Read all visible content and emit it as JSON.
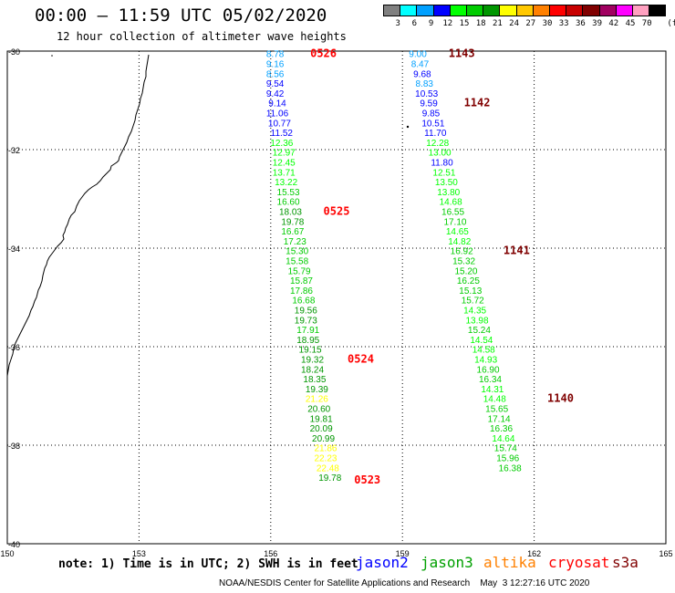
{
  "header": {
    "title": "00:00 — 11:59 UTC 05/02/2020",
    "subtitle": "12 hour collection of altimeter wave heights"
  },
  "legend": {
    "unit_label": "(ft)",
    "bins": [
      {
        "label": "3",
        "color": "#808080"
      },
      {
        "label": "6",
        "color": "#00ffff"
      },
      {
        "label": "9",
        "color": "#00a0ff"
      },
      {
        "label": "12",
        "color": "#0000ff"
      },
      {
        "label": "15",
        "color": "#00ff00"
      },
      {
        "label": "18",
        "color": "#00cc00"
      },
      {
        "label": "21",
        "color": "#009600"
      },
      {
        "label": "24",
        "color": "#ffff00"
      },
      {
        "label": "27",
        "color": "#ffc800"
      },
      {
        "label": "30",
        "color": "#ff8000"
      },
      {
        "label": "33",
        "color": "#ff0000"
      },
      {
        "label": "36",
        "color": "#c80000"
      },
      {
        "label": "39",
        "color": "#800000"
      },
      {
        "label": "42",
        "color": "#a00060"
      },
      {
        "label": "45",
        "color": "#ff00ff"
      },
      {
        "label": "70",
        "color": "#ffa0c0"
      },
      {
        "label": "",
        "color": "#000000"
      }
    ]
  },
  "map": {
    "lon_range": [
      150,
      165
    ],
    "lat_range": [
      -40,
      -30
    ],
    "lon_ticks": [
      "150",
      "153",
      "156",
      "159",
      "162",
      "165"
    ],
    "lat_ticks": [
      "-30",
      "-32",
      "-34",
      "-36",
      "-38",
      "-40"
    ],
    "tracks": [
      {
        "name": "west-track",
        "points": [
          {
            "lon": 156.1,
            "lat": -30.05,
            "v": "8.78",
            "c": "#00a0ff"
          },
          {
            "lon": 156.1,
            "lat": -30.25,
            "v": "9.16",
            "c": "#00a0ff"
          },
          {
            "lon": 156.1,
            "lat": -30.45,
            "v": "8.56",
            "c": "#00a0ff"
          },
          {
            "lon": 156.1,
            "lat": -30.65,
            "v": "9.54",
            "c": "#0000ff"
          },
          {
            "lon": 156.1,
            "lat": -30.85,
            "v": "9.42",
            "c": "#0000ff"
          },
          {
            "lon": 156.15,
            "lat": -31.05,
            "v": "9.14",
            "c": "#0000ff"
          },
          {
            "lon": 156.15,
            "lat": -31.25,
            "v": "11.06",
            "c": "#0000ff"
          },
          {
            "lon": 156.2,
            "lat": -31.45,
            "v": "10.77",
            "c": "#0000ff"
          },
          {
            "lon": 156.25,
            "lat": -31.65,
            "v": "11.52",
            "c": "#0000ff"
          },
          {
            "lon": 156.25,
            "lat": -31.85,
            "v": "12.36",
            "c": "#00ff00"
          },
          {
            "lon": 156.3,
            "lat": -32.05,
            "v": "12.97",
            "c": "#00ff00"
          },
          {
            "lon": 156.3,
            "lat": -32.25,
            "v": "12.45",
            "c": "#00ff00"
          },
          {
            "lon": 156.3,
            "lat": -32.45,
            "v": "13.71",
            "c": "#00ff00"
          },
          {
            "lon": 156.35,
            "lat": -32.65,
            "v": "13.22",
            "c": "#00ff00"
          },
          {
            "lon": 156.4,
            "lat": -32.85,
            "v": "15.53",
            "c": "#00cc00"
          },
          {
            "lon": 156.4,
            "lat": -33.05,
            "v": "16.60",
            "c": "#00cc00"
          },
          {
            "lon": 156.45,
            "lat": -33.25,
            "v": "18.03",
            "c": "#009600"
          },
          {
            "lon": 156.5,
            "lat": -33.45,
            "v": "19.78",
            "c": "#009600"
          },
          {
            "lon": 156.5,
            "lat": -33.65,
            "v": "16.67",
            "c": "#00cc00"
          },
          {
            "lon": 156.55,
            "lat": -33.85,
            "v": "17.23",
            "c": "#00cc00"
          },
          {
            "lon": 156.6,
            "lat": -34.05,
            "v": "15.30",
            "c": "#00cc00"
          },
          {
            "lon": 156.6,
            "lat": -34.25,
            "v": "15.58",
            "c": "#00cc00"
          },
          {
            "lon": 156.65,
            "lat": -34.45,
            "v": "15.79",
            "c": "#00cc00"
          },
          {
            "lon": 156.7,
            "lat": -34.65,
            "v": "15.87",
            "c": "#00cc00"
          },
          {
            "lon": 156.7,
            "lat": -34.85,
            "v": "17.86",
            "c": "#00cc00"
          },
          {
            "lon": 156.75,
            "lat": -35.05,
            "v": "16.68",
            "c": "#00cc00"
          },
          {
            "lon": 156.8,
            "lat": -35.25,
            "v": "19.56",
            "c": "#009600"
          },
          {
            "lon": 156.8,
            "lat": -35.45,
            "v": "19.73",
            "c": "#009600"
          },
          {
            "lon": 156.85,
            "lat": -35.65,
            "v": "17.91",
            "c": "#00cc00"
          },
          {
            "lon": 156.85,
            "lat": -35.85,
            "v": "18.95",
            "c": "#009600"
          },
          {
            "lon": 156.9,
            "lat": -36.05,
            "v": "19.15",
            "c": "#009600"
          },
          {
            "lon": 156.95,
            "lat": -36.25,
            "v": "19.32",
            "c": "#009600"
          },
          {
            "lon": 156.95,
            "lat": -36.45,
            "v": "18.24",
            "c": "#009600"
          },
          {
            "lon": 157.0,
            "lat": -36.65,
            "v": "18.35",
            "c": "#009600"
          },
          {
            "lon": 157.05,
            "lat": -36.85,
            "v": "19.39",
            "c": "#009600"
          },
          {
            "lon": 157.05,
            "lat": -37.05,
            "v": "21.26",
            "c": "#ffff00"
          },
          {
            "lon": 157.1,
            "lat": -37.25,
            "v": "20.60",
            "c": "#009600"
          },
          {
            "lon": 157.15,
            "lat": -37.45,
            "v": "19.81",
            "c": "#009600"
          },
          {
            "lon": 157.15,
            "lat": -37.65,
            "v": "20.09",
            "c": "#009600"
          },
          {
            "lon": 157.2,
            "lat": -37.85,
            "v": "20.99",
            "c": "#009600"
          },
          {
            "lon": 157.25,
            "lat": -38.05,
            "v": "21.86",
            "c": "#ffff00"
          },
          {
            "lon": 157.25,
            "lat": -38.25,
            "v": "22.23",
            "c": "#ffff00"
          },
          {
            "lon": 157.3,
            "lat": -38.45,
            "v": "22.48",
            "c": "#ffff00"
          },
          {
            "lon": 157.35,
            "lat": -38.65,
            "v": "19.78",
            "c": "#009600"
          }
        ]
      },
      {
        "name": "east-track",
        "points": [
          {
            "lon": 159.35,
            "lat": -30.05,
            "v": "9.00",
            "c": "#00a0ff"
          },
          {
            "lon": 159.4,
            "lat": -30.25,
            "v": "8.47",
            "c": "#00a0ff"
          },
          {
            "lon": 159.45,
            "lat": -30.45,
            "v": "9.68",
            "c": "#0000ff"
          },
          {
            "lon": 159.5,
            "lat": -30.65,
            "v": "8.83",
            "c": "#00a0ff"
          },
          {
            "lon": 159.55,
            "lat": -30.85,
            "v": "10.53",
            "c": "#0000ff"
          },
          {
            "lon": 159.6,
            "lat": -31.05,
            "v": "9.59",
            "c": "#0000ff"
          },
          {
            "lon": 159.65,
            "lat": -31.25,
            "v": "9.85",
            "c": "#0000ff"
          },
          {
            "lon": 159.7,
            "lat": -31.45,
            "v": "10.51",
            "c": "#0000ff"
          },
          {
            "lon": 159.75,
            "lat": -31.65,
            "v": "11.70",
            "c": "#0000ff"
          },
          {
            "lon": 159.8,
            "lat": -31.85,
            "v": "12.28",
            "c": "#00ff00"
          },
          {
            "lon": 159.85,
            "lat": -32.05,
            "v": "13.00",
            "c": "#00ff00"
          },
          {
            "lon": 159.9,
            "lat": -32.25,
            "v": "11.80",
            "c": "#0000ff"
          },
          {
            "lon": 159.95,
            "lat": -32.45,
            "v": "12.51",
            "c": "#00ff00"
          },
          {
            "lon": 160.0,
            "lat": -32.65,
            "v": "13.50",
            "c": "#00ff00"
          },
          {
            "lon": 160.05,
            "lat": -32.85,
            "v": "13.80",
            "c": "#00ff00"
          },
          {
            "lon": 160.1,
            "lat": -33.05,
            "v": "14.68",
            "c": "#00ff00"
          },
          {
            "lon": 160.15,
            "lat": -33.25,
            "v": "16.55",
            "c": "#00cc00"
          },
          {
            "lon": 160.2,
            "lat": -33.45,
            "v": "17.10",
            "c": "#00cc00"
          },
          {
            "lon": 160.25,
            "lat": -33.65,
            "v": "14.65",
            "c": "#00ff00"
          },
          {
            "lon": 160.3,
            "lat": -33.85,
            "v": "14.82",
            "c": "#00ff00"
          },
          {
            "lon": 160.35,
            "lat": -34.05,
            "v": "16.92",
            "c": "#00cc00"
          },
          {
            "lon": 160.4,
            "lat": -34.25,
            "v": "15.32",
            "c": "#00cc00"
          },
          {
            "lon": 160.45,
            "lat": -34.45,
            "v": "15.20",
            "c": "#00cc00"
          },
          {
            "lon": 160.5,
            "lat": -34.65,
            "v": "16.25",
            "c": "#00cc00"
          },
          {
            "lon": 160.55,
            "lat": -34.85,
            "v": "15.13",
            "c": "#00cc00"
          },
          {
            "lon": 160.6,
            "lat": -35.05,
            "v": "15.72",
            "c": "#00cc00"
          },
          {
            "lon": 160.65,
            "lat": -35.25,
            "v": "14.35",
            "c": "#00ff00"
          },
          {
            "lon": 160.7,
            "lat": -35.45,
            "v": "13.98",
            "c": "#00ff00"
          },
          {
            "lon": 160.75,
            "lat": -35.65,
            "v": "15.24",
            "c": "#00cc00"
          },
          {
            "lon": 160.8,
            "lat": -35.85,
            "v": "14.54",
            "c": "#00ff00"
          },
          {
            "lon": 160.85,
            "lat": -36.05,
            "v": "14.58",
            "c": "#00ff00"
          },
          {
            "lon": 160.9,
            "lat": -36.25,
            "v": "14.93",
            "c": "#00ff00"
          },
          {
            "lon": 160.95,
            "lat": -36.45,
            "v": "16.90",
            "c": "#00cc00"
          },
          {
            "lon": 161.0,
            "lat": -36.65,
            "v": "16.34",
            "c": "#00cc00"
          },
          {
            "lon": 161.05,
            "lat": -36.85,
            "v": "14.31",
            "c": "#00ff00"
          },
          {
            "lon": 161.1,
            "lat": -37.05,
            "v": "14.48",
            "c": "#00ff00"
          },
          {
            "lon": 161.15,
            "lat": -37.25,
            "v": "15.65",
            "c": "#00cc00"
          },
          {
            "lon": 161.2,
            "lat": -37.45,
            "v": "17.14",
            "c": "#00cc00"
          },
          {
            "lon": 161.25,
            "lat": -37.65,
            "v": "16.36",
            "c": "#00cc00"
          },
          {
            "lon": 161.3,
            "lat": -37.85,
            "v": "14.64",
            "c": "#00ff00"
          },
          {
            "lon": 161.35,
            "lat": -38.05,
            "v": "15.74",
            "c": "#00cc00"
          },
          {
            "lon": 161.4,
            "lat": -38.25,
            "v": "15.96",
            "c": "#00cc00"
          },
          {
            "lon": 161.45,
            "lat": -38.45,
            "v": "16.38",
            "c": "#00cc00"
          }
        ]
      }
    ],
    "pass_labels": [
      {
        "text": "0526",
        "lon": 156.9,
        "lat": -30.05,
        "c": "#ff0000"
      },
      {
        "text": "0525",
        "lon": 157.2,
        "lat": -33.25,
        "c": "#ff0000"
      },
      {
        "text": "0524",
        "lon": 157.75,
        "lat": -36.25,
        "c": "#ff0000"
      },
      {
        "text": "0523",
        "lon": 157.9,
        "lat": -38.7,
        "c": "#ff0000"
      },
      {
        "text": "1143",
        "lon": 160.05,
        "lat": -30.05,
        "c": "#800000"
      },
      {
        "text": "1142",
        "lon": 160.4,
        "lat": -31.05,
        "c": "#800000"
      },
      {
        "text": "1141",
        "lon": 161.3,
        "lat": -34.05,
        "c": "#800000"
      },
      {
        "text": "1140",
        "lon": 162.3,
        "lat": -37.05,
        "c": "#800000"
      }
    ]
  },
  "footer": {
    "note": "note: 1) Time is in UTC; 2) SWH is in feet",
    "satellites": [
      {
        "name": "jason2",
        "color": "#0000ff"
      },
      {
        "name": "jason3",
        "color": "#00a000"
      },
      {
        "name": "altika",
        "color": "#ff8000"
      },
      {
        "name": "cryosat",
        "color": "#ff0000"
      },
      {
        "name": "s3a",
        "color": "#800000"
      }
    ],
    "credit": "NOAA/NESDIS Center for Satellite Applications and Research    May  3 12:27:16 UTC 2020"
  }
}
